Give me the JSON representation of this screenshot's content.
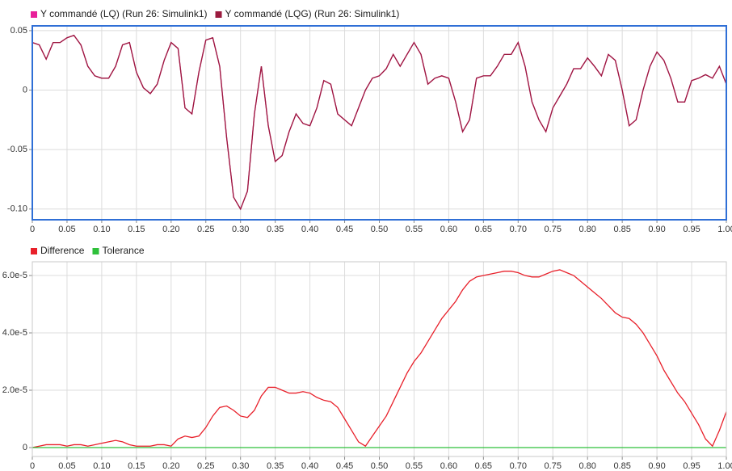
{
  "chart_data": [
    {
      "type": "line",
      "grid": true,
      "legend": "top-left",
      "x": [
        0,
        0.01,
        0.02,
        0.03,
        0.04,
        0.05,
        0.06,
        0.07,
        0.08,
        0.09,
        0.1,
        0.11,
        0.12,
        0.13,
        0.14,
        0.15,
        0.16,
        0.17,
        0.18,
        0.19,
        0.2,
        0.21,
        0.22,
        0.23,
        0.24,
        0.25,
        0.26,
        0.27,
        0.28,
        0.29,
        0.3,
        0.31,
        0.32,
        0.33,
        0.34,
        0.35,
        0.36,
        0.37,
        0.38,
        0.39,
        0.4,
        0.41,
        0.42,
        0.43,
        0.44,
        0.45,
        0.46,
        0.47,
        0.48,
        0.49,
        0.5,
        0.51,
        0.52,
        0.53,
        0.54,
        0.55,
        0.56,
        0.57,
        0.58,
        0.59,
        0.6,
        0.61,
        0.62,
        0.63,
        0.64,
        0.65,
        0.66,
        0.67,
        0.68,
        0.69,
        0.7,
        0.71,
        0.72,
        0.73,
        0.74,
        0.75,
        0.76,
        0.77,
        0.78,
        0.79,
        0.8,
        0.81,
        0.82,
        0.83,
        0.84,
        0.85,
        0.86,
        0.87,
        0.88,
        0.89,
        0.9,
        0.91,
        0.92,
        0.93,
        0.94,
        0.95,
        0.96,
        0.97,
        0.98,
        0.99,
        1
      ],
      "series": [
        {
          "name": "Y commandé (LQ) (Run 26: Simulink1)",
          "color": "#e8209a",
          "values": [
            0.04,
            0.038,
            0.026,
            0.04,
            0.04,
            0.044,
            0.046,
            0.038,
            0.02,
            0.012,
            0.01,
            0.01,
            0.02,
            0.038,
            0.04,
            0.015,
            0.002,
            -0.003,
            0.005,
            0.025,
            0.04,
            0.035,
            -0.015,
            -0.02,
            0.015,
            0.042,
            0.044,
            0.02,
            -0.04,
            -0.09,
            -0.1,
            -0.085,
            -0.02,
            0.02,
            -0.03,
            -0.06,
            -0.055,
            -0.035,
            -0.02,
            -0.028,
            -0.03,
            -0.015,
            0.008,
            0.005,
            -0.02,
            -0.025,
            -0.03,
            -0.015,
            0,
            0.01,
            0.012,
            0.018,
            0.03,
            0.02,
            0.03,
            0.04,
            0.03,
            0.005,
            0.01,
            0.012,
            0.01,
            -0.01,
            -0.035,
            -0.025,
            0.01,
            0.012,
            0.012,
            0.02,
            0.03,
            0.03,
            0.04,
            0.02,
            -0.01,
            -0.025,
            -0.035,
            -0.015,
            -0.005,
            0.005,
            0.018,
            0.018,
            0.027,
            0.02,
            0.012,
            0.03,
            0.025,
            0,
            -0.03,
            -0.025,
            0,
            0.02,
            0.032,
            0.025,
            0.01,
            -0.01,
            -0.01,
            0.008,
            0.01,
            0.013,
            0.01,
            0.02,
            0.005
          ]
        },
        {
          "name": "Y commandé (LQG) (Run 26: Simulink1)",
          "color": "#9b1b3f",
          "values": [
            0.04,
            0.038,
            0.026,
            0.04,
            0.04,
            0.044,
            0.046,
            0.038,
            0.02,
            0.012,
            0.01,
            0.01,
            0.02,
            0.038,
            0.04,
            0.015,
            0.002,
            -0.003,
            0.005,
            0.025,
            0.04,
            0.035,
            -0.015,
            -0.02,
            0.015,
            0.042,
            0.044,
            0.02,
            -0.04,
            -0.09,
            -0.1,
            -0.085,
            -0.02,
            0.02,
            -0.03,
            -0.06,
            -0.055,
            -0.035,
            -0.02,
            -0.028,
            -0.03,
            -0.015,
            0.008,
            0.005,
            -0.02,
            -0.025,
            -0.03,
            -0.015,
            0,
            0.01,
            0.012,
            0.018,
            0.03,
            0.02,
            0.03,
            0.04,
            0.03,
            0.005,
            0.01,
            0.012,
            0.01,
            -0.01,
            -0.035,
            -0.025,
            0.01,
            0.012,
            0.012,
            0.02,
            0.03,
            0.03,
            0.04,
            0.02,
            -0.01,
            -0.025,
            -0.035,
            -0.015,
            -0.005,
            0.005,
            0.018,
            0.018,
            0.027,
            0.02,
            0.012,
            0.03,
            0.025,
            0,
            -0.03,
            -0.025,
            0,
            0.02,
            0.032,
            0.025,
            0.01,
            -0.01,
            -0.01,
            0.008,
            0.01,
            0.013,
            0.01,
            0.02,
            0.005
          ]
        }
      ],
      "xlim": [
        0,
        1
      ],
      "xticks": [
        0,
        0.05,
        {
          "value": 0.1,
          "label": "0.10"
        },
        0.15,
        {
          "value": 0.2,
          "label": "0.20"
        },
        0.25,
        {
          "value": 0.3,
          "label": "0.30"
        },
        0.35,
        {
          "value": 0.4,
          "label": "0.40"
        },
        0.45,
        {
          "value": 0.5,
          "label": "0.50"
        },
        0.55,
        {
          "value": 0.6,
          "label": "0.60"
        },
        0.65,
        {
          "value": 0.7,
          "label": "0.70"
        },
        0.75,
        {
          "value": 0.8,
          "label": "0.80"
        },
        0.85,
        {
          "value": 0.9,
          "label": "0.90"
        },
        0.95,
        {
          "value": 1,
          "label": "1.00"
        }
      ],
      "ylim": [
        -0.109,
        0.054
      ],
      "yticks": [
        {
          "value": -0.1,
          "label": "-0.10"
        },
        -0.05,
        0,
        0.05
      ]
    },
    {
      "type": "line",
      "grid": true,
      "legend": "top-left",
      "x": [
        0,
        0.01,
        0.02,
        0.03,
        0.04,
        0.05,
        0.06,
        0.07,
        0.08,
        0.09,
        0.1,
        0.11,
        0.12,
        0.13,
        0.14,
        0.15,
        0.16,
        0.17,
        0.18,
        0.19,
        0.2,
        0.21,
        0.22,
        0.23,
        0.24,
        0.25,
        0.26,
        0.27,
        0.28,
        0.29,
        0.3,
        0.31,
        0.32,
        0.33,
        0.34,
        0.35,
        0.36,
        0.37,
        0.38,
        0.39,
        0.4,
        0.41,
        0.42,
        0.43,
        0.44,
        0.45,
        0.46,
        0.47,
        0.48,
        0.49,
        0.5,
        0.51,
        0.52,
        0.53,
        0.54,
        0.55,
        0.56,
        0.57,
        0.58,
        0.59,
        0.6,
        0.61,
        0.62,
        0.63,
        0.64,
        0.65,
        0.66,
        0.67,
        0.68,
        0.69,
        0.7,
        0.71,
        0.72,
        0.73,
        0.74,
        0.75,
        0.76,
        0.77,
        0.78,
        0.79,
        0.8,
        0.81,
        0.82,
        0.83,
        0.84,
        0.85,
        0.86,
        0.87,
        0.88,
        0.89,
        0.9,
        0.91,
        0.92,
        0.93,
        0.94,
        0.95,
        0.96,
        0.97,
        0.98,
        0.99,
        1
      ],
      "series": [
        {
          "name": "Difference",
          "color": "#e8202a",
          "values": [
            0,
            5e-07,
            1e-06,
            1e-06,
            1e-06,
            5e-07,
            1e-06,
            1e-06,
            5e-07,
            1e-06,
            1.5e-06,
            2e-06,
            2.5e-06,
            2e-06,
            1e-06,
            5e-07,
            5e-07,
            5e-07,
            1e-06,
            1e-06,
            5e-07,
            3e-06,
            4e-06,
            3.5e-06,
            4e-06,
            7e-06,
            1.1e-05,
            1.4e-05,
            1.45e-05,
            1.3e-05,
            1.1e-05,
            1.05e-05,
            1.3e-05,
            1.8e-05,
            2.1e-05,
            2.1e-05,
            2e-05,
            1.9e-05,
            1.9e-05,
            1.95e-05,
            1.9e-05,
            1.75e-05,
            1.65e-05,
            1.6e-05,
            1.4e-05,
            1e-05,
            6e-06,
            2e-06,
            5e-07,
            4e-06,
            7.5e-06,
            1.1e-05,
            1.6e-05,
            2.1e-05,
            2.6e-05,
            3e-05,
            3.3e-05,
            3.7e-05,
            4.1e-05,
            4.5e-05,
            4.8e-05,
            5.1e-05,
            5.5e-05,
            5.8e-05,
            5.95e-05,
            6e-05,
            6.05e-05,
            6.1e-05,
            6.15e-05,
            6.15e-05,
            6.1e-05,
            6e-05,
            5.95e-05,
            5.95e-05,
            6.05e-05,
            6.15e-05,
            6.2e-05,
            6.1e-05,
            6e-05,
            5.8e-05,
            5.6e-05,
            5.4e-05,
            5.2e-05,
            4.95e-05,
            4.7e-05,
            4.55e-05,
            4.5e-05,
            4.3e-05,
            4e-05,
            3.6e-05,
            3.2e-05,
            2.7e-05,
            2.3e-05,
            1.9e-05,
            1.6e-05,
            1.2e-05,
            8e-06,
            3e-06,
            5e-07,
            6e-06,
            1.25e-05
          ]
        },
        {
          "name": "Tolerance",
          "color": "#2ec03a",
          "values": [
            0,
            0,
            0,
            0,
            0,
            0,
            0,
            0,
            0,
            0,
            0,
            0,
            0,
            0,
            0,
            0,
            0,
            0,
            0,
            0,
            0,
            0,
            0,
            0,
            0,
            0,
            0,
            0,
            0,
            0,
            0,
            0,
            0,
            0,
            0,
            0,
            0,
            0,
            0,
            0,
            0,
            0,
            0,
            0,
            0,
            0,
            0,
            0,
            0,
            0,
            0,
            0,
            0,
            0,
            0,
            0,
            0,
            0,
            0,
            0,
            0,
            0,
            0,
            0,
            0,
            0,
            0,
            0,
            0,
            0,
            0,
            0,
            0,
            0,
            0,
            0,
            0,
            0,
            0,
            0,
            0,
            0,
            0,
            0,
            0,
            0,
            0,
            0,
            0,
            0,
            0,
            0,
            0,
            0,
            0,
            0,
            0,
            0,
            0,
            0,
            0
          ]
        }
      ],
      "xlim": [
        0,
        1
      ],
      "xticks": [
        0,
        0.05,
        {
          "value": 0.1,
          "label": "0.10"
        },
        0.15,
        {
          "value": 0.2,
          "label": "0.20"
        },
        0.25,
        {
          "value": 0.3,
          "label": "0.30"
        },
        0.35,
        {
          "value": 0.4,
          "label": "0.40"
        },
        0.45,
        {
          "value": 0.5,
          "label": "0.50"
        },
        0.55,
        {
          "value": 0.6,
          "label": "0.60"
        },
        0.65,
        {
          "value": 0.7,
          "label": "0.70"
        },
        0.75,
        {
          "value": 0.8,
          "label": "0.80"
        },
        0.85,
        {
          "value": 0.9,
          "label": "0.90"
        },
        0.95,
        {
          "value": 1,
          "label": "1.00"
        }
      ],
      "ylim": [
        -3.1e-06,
        6.48e-05
      ],
      "yticks": [
        0,
        {
          "value": 2e-05,
          "label": "2.0e-5"
        },
        {
          "value": 4e-05,
          "label": "4.0e-5"
        },
        {
          "value": 6e-05,
          "label": "6.0e-5"
        }
      ]
    }
  ]
}
